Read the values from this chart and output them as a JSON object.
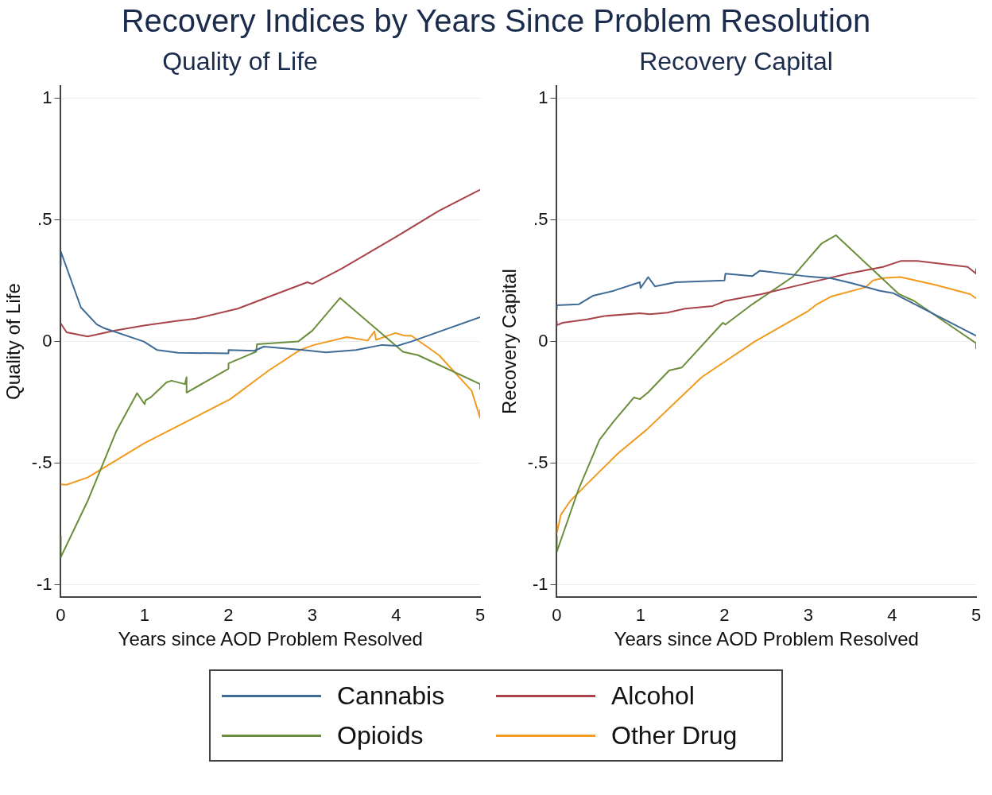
{
  "chart_data": [
    {
      "type": "line",
      "title": "Recovery Indices by Years Since Problem Resolution",
      "subtitle": "Quality of Life",
      "xlabel": "Years since AOD Problem Resolved",
      "ylabel": "Quality of Life",
      "xlim": [
        0,
        5
      ],
      "xticks": [
        0,
        1,
        2,
        3,
        4,
        5
      ],
      "ylim": [
        -1.05,
        1.05
      ],
      "yticks": [
        {
          "value": -1,
          "label": "-1"
        },
        {
          "value": -0.5,
          "label": "-.5"
        },
        {
          "value": 0,
          "label": "0"
        },
        {
          "value": 0.5,
          "label": ".5"
        },
        {
          "value": 1,
          "label": "1"
        }
      ],
      "grid": "y",
      "legend": "bottom",
      "series": [
        {
          "name": "Cannabis",
          "color": "#3e6a96",
          "x": [
            0,
            0,
            0.24,
            0.43,
            0.51,
            0.99,
            1.15,
            1.4,
            2.0,
            2.0,
            2.31,
            2.42,
            2.89,
            3.16,
            3.52,
            3.83,
            4.01,
            4.18,
            5
          ],
          "values": [
            0.31,
            0.37,
            0.14,
            0.07,
            0.056,
            0,
            -0.035,
            -0.046,
            -0.049,
            -0.035,
            -0.038,
            -0.021,
            -0.035,
            -0.045,
            -0.035,
            -0.014,
            -0.018,
            0,
            0.1
          ]
        },
        {
          "name": "Alcohol",
          "color": "#a8434a",
          "x": [
            0,
            0.07,
            0.32,
            0.66,
            0.99,
            1.36,
            1.61,
            2.11,
            2.52,
            2.94,
            3.0,
            3.35,
            4.01,
            4.51,
            5
          ],
          "values": [
            0.074,
            0.038,
            0.021,
            0.046,
            0.066,
            0.084,
            0.094,
            0.135,
            0.189,
            0.244,
            0.237,
            0.3,
            0.433,
            0.538,
            0.624
          ]
        },
        {
          "name": "Opioids",
          "color": "#6b8e3a",
          "x": [
            0,
            0,
            0.32,
            0.66,
            0.91,
            1.0,
            1.01,
            1.07,
            1.26,
            1.32,
            1.48,
            1.5,
            1.5,
            2.0,
            2.0,
            2.33,
            2.34,
            2.83,
            3.0,
            3.33,
            4.08,
            4.26,
            5,
            5
          ],
          "values": [
            -0.8,
            -0.887,
            -0.656,
            -0.37,
            -0.212,
            -0.258,
            -0.242,
            -0.23,
            -0.168,
            -0.161,
            -0.175,
            -0.147,
            -0.21,
            -0.112,
            -0.09,
            -0.042,
            -0.011,
            0,
            0.045,
            0.179,
            -0.042,
            -0.056,
            -0.175,
            -0.196
          ]
        },
        {
          "name": "Other Drug",
          "color": "#f29a1e",
          "x": [
            0,
            0.07,
            0.32,
            0.49,
            0.99,
            2.02,
            2.48,
            2.85,
            3.02,
            3.41,
            3.66,
            3.74,
            3.76,
            3.99,
            4.1,
            4.18,
            4.51,
            4.9,
            5,
            5
          ],
          "values": [
            -0.587,
            -0.589,
            -0.559,
            -0.524,
            -0.419,
            -0.237,
            -0.119,
            -0.035,
            -0.014,
            0.018,
            0.004,
            0.042,
            0.007,
            0.035,
            0.024,
            0.024,
            -0.056,
            -0.203,
            -0.314,
            -0.279
          ]
        }
      ]
    },
    {
      "type": "line",
      "subtitle": "Recovery Capital",
      "xlabel": "Years since AOD Problem Resolved",
      "ylabel": "Recovery Capital",
      "xlim": [
        0,
        5
      ],
      "xticks": [
        0,
        1,
        2,
        3,
        4,
        5
      ],
      "ylim": [
        -1.05,
        1.05
      ],
      "yticks": [
        {
          "value": -1,
          "label": "-1"
        },
        {
          "value": -0.5,
          "label": "-.5"
        },
        {
          "value": 0,
          "label": "0"
        },
        {
          "value": 0.5,
          "label": ".5"
        },
        {
          "value": 1,
          "label": "1"
        }
      ],
      "grid": "y",
      "series": [
        {
          "color": "#3e6a96",
          "x": [
            0,
            0,
            0.26,
            0.43,
            0.68,
            0.99,
            1.0,
            1.09,
            1.17,
            1.42,
            2.0,
            2.01,
            2.33,
            2.42,
            2.98,
            3.27,
            3.52,
            3.85,
            4.01,
            5
          ],
          "values": [
            0.13,
            0.149,
            0.153,
            0.188,
            0.209,
            0.244,
            0.22,
            0.265,
            0.227,
            0.244,
            0.251,
            0.279,
            0.269,
            0.291,
            0.268,
            0.26,
            0.24,
            0.209,
            0.199,
            0.024
          ]
        },
        {
          "color": "#a8434a",
          "x": [
            0,
            0,
            0.07,
            0.36,
            0.57,
            0.99,
            1.11,
            1.32,
            1.53,
            1.86,
            2.01,
            2.44,
            3.0,
            3.47,
            3.89,
            4.1,
            4.3,
            4.9,
            5,
            5
          ],
          "values": [
            0.084,
            0.067,
            0.077,
            0.091,
            0.105,
            0.116,
            0.112,
            0.119,
            0.135,
            0.146,
            0.167,
            0.195,
            0.241,
            0.279,
            0.307,
            0.331,
            0.331,
            0.307,
            0.279,
            0.3
          ]
        },
        {
          "color": "#6b8e3a",
          "x": [
            0,
            0,
            0.26,
            0.51,
            0.68,
            0.92,
            0.99,
            1.09,
            1.34,
            1.49,
            1.98,
            2.01,
            2.33,
            2.81,
            3.16,
            3.33,
            4.08,
            4.26,
            5,
            5
          ],
          "values": [
            -0.8,
            -0.865,
            -0.607,
            -0.404,
            -0.328,
            -0.23,
            -0.237,
            -0.209,
            -0.119,
            -0.107,
            0.077,
            0.07,
            0.153,
            0.265,
            0.404,
            0.437,
            0.195,
            0.167,
            -0.007,
            -0.028
          ]
        },
        {
          "color": "#f29a1e",
          "x": [
            0,
            0,
            0.05,
            0.16,
            0.36,
            0.73,
            1.07,
            1.73,
            2.36,
            3.0,
            3.1,
            3.27,
            3.68,
            3.77,
            3.89,
            4.1,
            4.51,
            4.93,
            5
          ],
          "values": [
            -0.753,
            -0.788,
            -0.711,
            -0.656,
            -0.586,
            -0.46,
            -0.363,
            -0.146,
            0,
            0.126,
            0.153,
            0.185,
            0.223,
            0.251,
            0.261,
            0.265,
            0.233,
            0.195,
            0.177
          ]
        }
      ]
    }
  ]
}
